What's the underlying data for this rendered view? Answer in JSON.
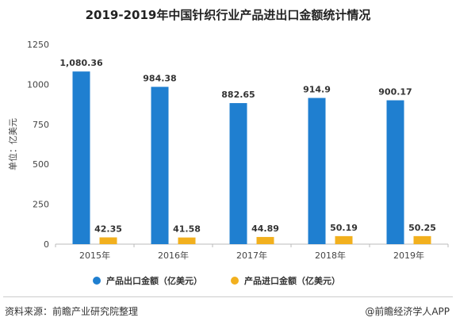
{
  "chart_data": {
    "type": "bar",
    "title": "2019-2019年中国针织行业产品进出口金额统计情况",
    "ylabel": "单位：亿美元",
    "xlabel": "",
    "ylim": [
      0,
      1250
    ],
    "yticks": [
      0,
      250,
      500,
      750,
      1000,
      1250
    ],
    "categories": [
      "2015年",
      "2016年",
      "2017年",
      "2018年",
      "2019年"
    ],
    "series": [
      {
        "name": "产品出口金额（亿美元）",
        "color": "#1f7fd0",
        "values": [
          1080.36,
          984.38,
          882.65,
          914.9,
          900.17
        ],
        "labels": [
          "1,080.36",
          "984.38",
          "882.65",
          "914.9",
          "900.17"
        ]
      },
      {
        "name": "产品进口金额（亿美元）",
        "color": "#f2b01e",
        "values": [
          42.35,
          41.58,
          44.89,
          50.19,
          50.25
        ],
        "labels": [
          "42.35",
          "41.58",
          "44.89",
          "50.19",
          "50.25"
        ]
      }
    ],
    "grid": false,
    "legend_position": "bottom"
  },
  "footer": {
    "source": "资料来源：前瞻产业研究院整理",
    "credit": "@前瞻经济学人APP"
  }
}
